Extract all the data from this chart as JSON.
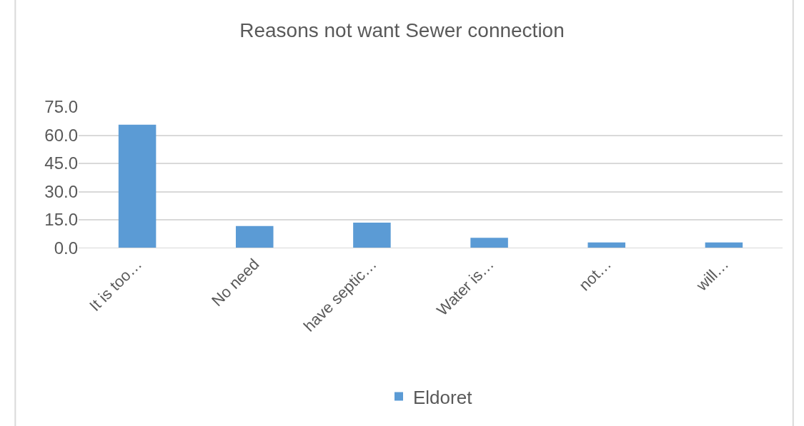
{
  "chart_data": {
    "type": "bar",
    "title": "Reasons not want Sewer connection",
    "categories": [
      "It is too…",
      "No need",
      "have septic…",
      "Water is…",
      "not…",
      "will…"
    ],
    "series": [
      {
        "name": "Eldoret",
        "color": "#5b9bd5",
        "values": [
          65.6,
          11.7,
          13.5,
          5.4,
          2.9,
          2.9
        ]
      }
    ],
    "ylim": [
      0,
      75
    ],
    "yticks": [
      {
        "value": 0,
        "label": "0.0"
      },
      {
        "value": 15,
        "label": "15.0"
      },
      {
        "value": 30,
        "label": "30.0"
      },
      {
        "value": 45,
        "label": "45.0"
      },
      {
        "value": 60,
        "label": "60.0"
      },
      {
        "value": 75,
        "label": "75.0"
      }
    ],
    "grid": "y",
    "legend": "bottom"
  }
}
